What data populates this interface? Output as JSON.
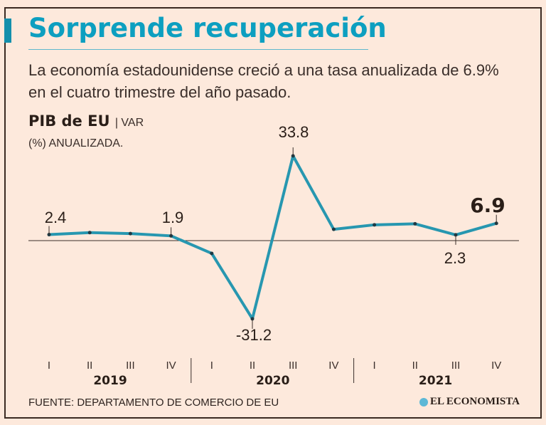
{
  "header": {
    "title": "Sorprende recuperación",
    "subtitle_line1": "La economía estadounidense creció a una tasa anualizada de 6.9%",
    "subtitle_line2": "en el cuatro trimestre del año pasado."
  },
  "chart_data": {
    "type": "line",
    "title": "PIB de EU",
    "unit_line1": "| VAR",
    "unit_line2": "(%) ANUALIZADA.",
    "quarters": [
      "I",
      "II",
      "III",
      "IV",
      "I",
      "II",
      "III",
      "IV",
      "I",
      "II",
      "III",
      "IV"
    ],
    "years": [
      "2019",
      "2020",
      "2021"
    ],
    "values": [
      2.4,
      3.2,
      2.8,
      1.9,
      -5.1,
      -31.2,
      33.8,
      4.5,
      6.3,
      6.7,
      2.3,
      6.9
    ],
    "data_labels": [
      "2.4",
      null,
      null,
      "1.9",
      null,
      "-31.2",
      "33.8",
      null,
      null,
      null,
      "2.3",
      "6.9"
    ],
    "ylim": [
      -35,
      38
    ],
    "line_color": "#2797b0",
    "zero_line": true,
    "grid": false
  },
  "footer": {
    "source": "FUENTE: DEPARTAMENTO DE COMERCIO DE EU",
    "logo": "EL ECONOMISTA"
  },
  "colors": {
    "title": "#0d9fc0",
    "background": "#fde9dc"
  }
}
